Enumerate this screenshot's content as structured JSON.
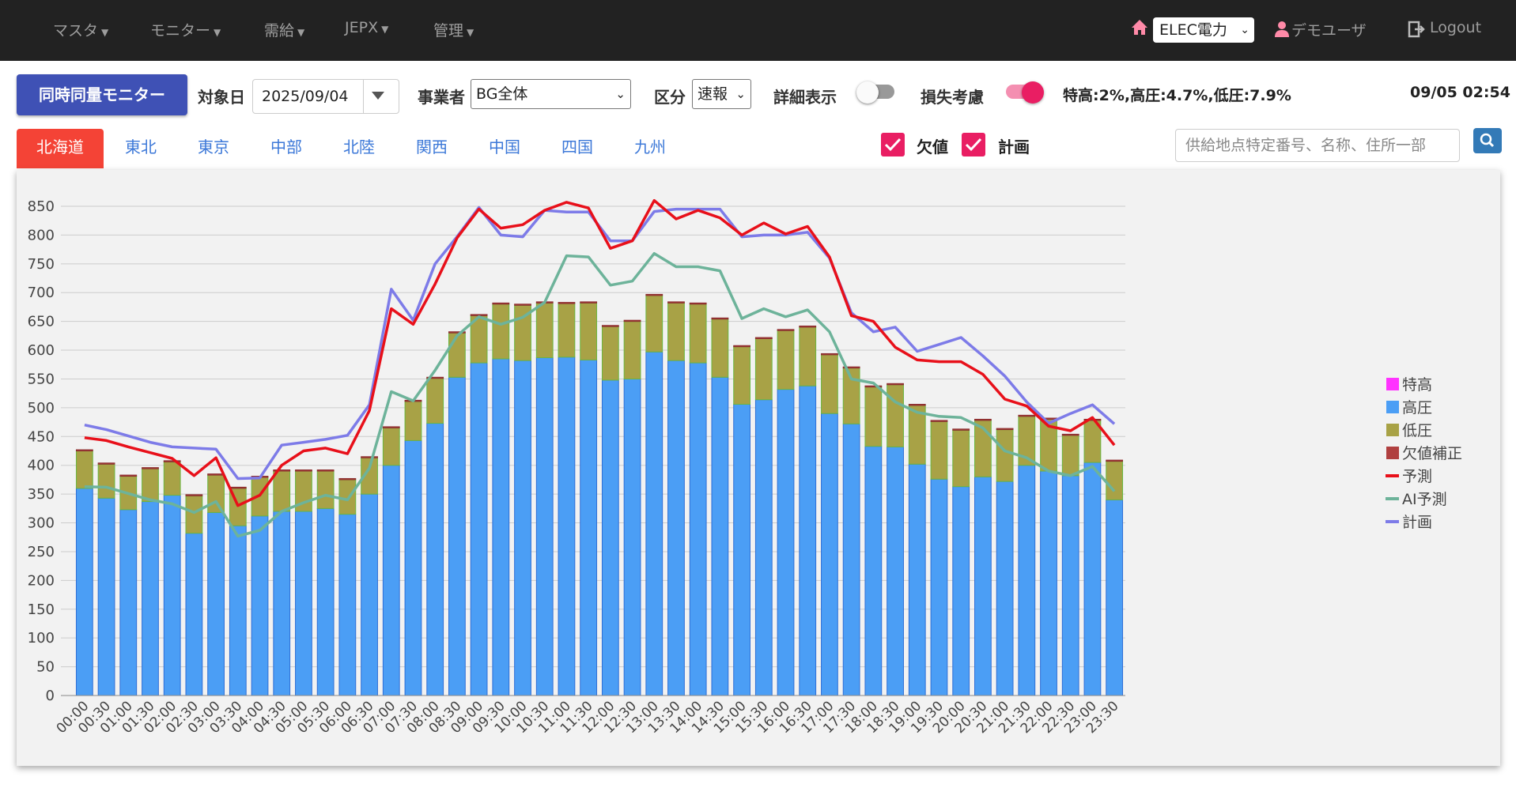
{
  "nav": {
    "items": [
      {
        "label": "マスタ"
      },
      {
        "label": "モニター"
      },
      {
        "label": "需給"
      },
      {
        "label": "JEPX"
      },
      {
        "label": "管理"
      }
    ],
    "company": "ELEC電力",
    "user": "デモユーザ",
    "logout": "Logout"
  },
  "toolbar": {
    "monitor_button": "同時同量モニター",
    "target_date_label": "対象日",
    "target_date": "2025/09/04",
    "operator_label": "事業者",
    "operator_value": "BG全体",
    "category_label": "区分",
    "category_value": "速報",
    "detail_label": "詳細表示",
    "detail_on": false,
    "loss_label": "損失考慮",
    "loss_on": true,
    "loss_rates": "特高:2%,高圧:4.7%,低圧:7.9%",
    "timestamp": "09/05 02:54"
  },
  "regions": {
    "tabs": [
      "北海道",
      "東北",
      "東京",
      "中部",
      "北陸",
      "関西",
      "中国",
      "四国",
      "九州"
    ],
    "active": "北海道"
  },
  "filters": {
    "missing_label": "欠値",
    "plan_label": "計画",
    "search_placeholder": "供給地点特定番号、名称、住所一部"
  },
  "colors": {
    "nav_bg": "#222222",
    "primary_button": "#3f51b5",
    "active_tab": "#f44336",
    "checkbox": "#e91e63",
    "toggle_on": "#e91e63",
    "special_high": "#ff33ff",
    "high_voltage": "#4b9ef5",
    "low_voltage": "#a8a246",
    "missing_correction": "#b04040",
    "forecast": "#e8101a",
    "ai_forecast": "#6db39a",
    "plan": "#7d7be8"
  },
  "chart_data": {
    "type": "bar",
    "stacked": true,
    "title": "",
    "xlabel": "",
    "ylabel": "",
    "ylim": [
      0,
      850
    ],
    "yticks": [
      0,
      50,
      100,
      150,
      200,
      250,
      300,
      350,
      400,
      450,
      500,
      550,
      600,
      650,
      700,
      750,
      800,
      850
    ],
    "grid": true,
    "legend_position": "right",
    "categories": [
      "00:00",
      "00:30",
      "01:00",
      "01:30",
      "02:00",
      "02:30",
      "03:00",
      "03:30",
      "04:00",
      "04:30",
      "05:00",
      "05:30",
      "06:00",
      "06:30",
      "07:00",
      "07:30",
      "08:00",
      "08:30",
      "09:00",
      "09:30",
      "10:00",
      "10:30",
      "11:00",
      "11:30",
      "12:00",
      "12:30",
      "13:00",
      "13:30",
      "14:00",
      "14:30",
      "15:00",
      "15:30",
      "16:00",
      "16:30",
      "17:00",
      "17:30",
      "18:00",
      "18:30",
      "19:00",
      "19:30",
      "20:00",
      "20:30",
      "21:00",
      "21:30",
      "22:00",
      "22:30",
      "23:00",
      "23:30"
    ],
    "series": [
      {
        "name": "特高",
        "kind": "bar",
        "values": [
          0,
          0,
          0,
          0,
          0,
          0,
          0,
          0,
          0,
          0,
          0,
          0,
          0,
          0,
          0,
          0,
          0,
          0,
          0,
          0,
          0,
          0,
          0,
          0,
          0,
          0,
          0,
          0,
          0,
          0,
          0,
          0,
          0,
          0,
          0,
          0,
          0,
          0,
          0,
          0,
          0,
          0,
          0,
          0,
          0,
          0,
          0,
          0
        ]
      },
      {
        "name": "高圧",
        "kind": "bar",
        "values": [
          360,
          343,
          323,
          337,
          348,
          282,
          318,
          295,
          312,
          320,
          320,
          325,
          315,
          350,
          400,
          443,
          473,
          553,
          578,
          585,
          582,
          587,
          588,
          583,
          548,
          550,
          597,
          582,
          578,
          553,
          506,
          514,
          532,
          538,
          490,
          472,
          433,
          432,
          402,
          376,
          363,
          380,
          372,
          400,
          390,
          382,
          405,
          340
        ]
      },
      {
        "name": "低圧",
        "kind": "bar",
        "values": [
          65,
          59,
          58,
          57,
          58,
          65,
          65,
          65,
          67,
          70,
          70,
          65,
          60,
          63,
          65,
          68,
          78,
          77,
          82,
          95,
          96,
          95,
          93,
          99,
          93,
          100,
          98,
          100,
          102,
          101,
          100,
          106,
          102,
          102,
          102,
          97,
          103,
          108,
          102,
          100,
          98,
          98,
          90,
          85,
          90,
          70,
          73,
          67
        ]
      },
      {
        "name": "欠値補正",
        "kind": "bar",
        "values": [
          2,
          2,
          2,
          2,
          2,
          2,
          2,
          2,
          2,
          2,
          2,
          2,
          2,
          2,
          2,
          2,
          2,
          2,
          2,
          2,
          2,
          2,
          2,
          2,
          2,
          2,
          2,
          2,
          2,
          2,
          2,
          2,
          2,
          2,
          2,
          2,
          2,
          2,
          2,
          2,
          2,
          2,
          2,
          2,
          2,
          2,
          2,
          2
        ]
      },
      {
        "name": "予測",
        "kind": "line",
        "values": [
          448,
          443,
          432,
          422,
          412,
          382,
          413,
          330,
          348,
          400,
          425,
          430,
          420,
          495,
          672,
          645,
          715,
          795,
          845,
          812,
          818,
          843,
          857,
          847,
          777,
          790,
          860,
          828,
          843,
          830,
          800,
          821,
          802,
          815,
          762,
          660,
          650,
          605,
          583,
          580,
          580,
          558,
          515,
          503,
          468,
          460,
          483,
          435
        ]
      },
      {
        "name": "AI予測",
        "kind": "line",
        "values": [
          363,
          362,
          351,
          340,
          333,
          318,
          337,
          277,
          287,
          320,
          335,
          348,
          340,
          395,
          528,
          512,
          565,
          625,
          658,
          645,
          657,
          683,
          764,
          762,
          713,
          720,
          768,
          745,
          745,
          738,
          655,
          672,
          658,
          670,
          632,
          550,
          543,
          510,
          492,
          485,
          483,
          465,
          425,
          413,
          390,
          382,
          398,
          355
        ]
      },
      {
        "name": "計画",
        "kind": "line",
        "values": [
          470,
          462,
          451,
          440,
          432,
          430,
          428,
          377,
          378,
          435,
          440,
          445,
          452,
          505,
          706,
          652,
          750,
          797,
          848,
          800,
          797,
          843,
          840,
          840,
          790,
          790,
          841,
          845,
          845,
          845,
          797,
          800,
          800,
          805,
          760,
          665,
          632,
          640,
          598,
          610,
          622,
          590,
          555,
          510,
          473,
          490,
          505,
          472
        ]
      }
    ]
  }
}
